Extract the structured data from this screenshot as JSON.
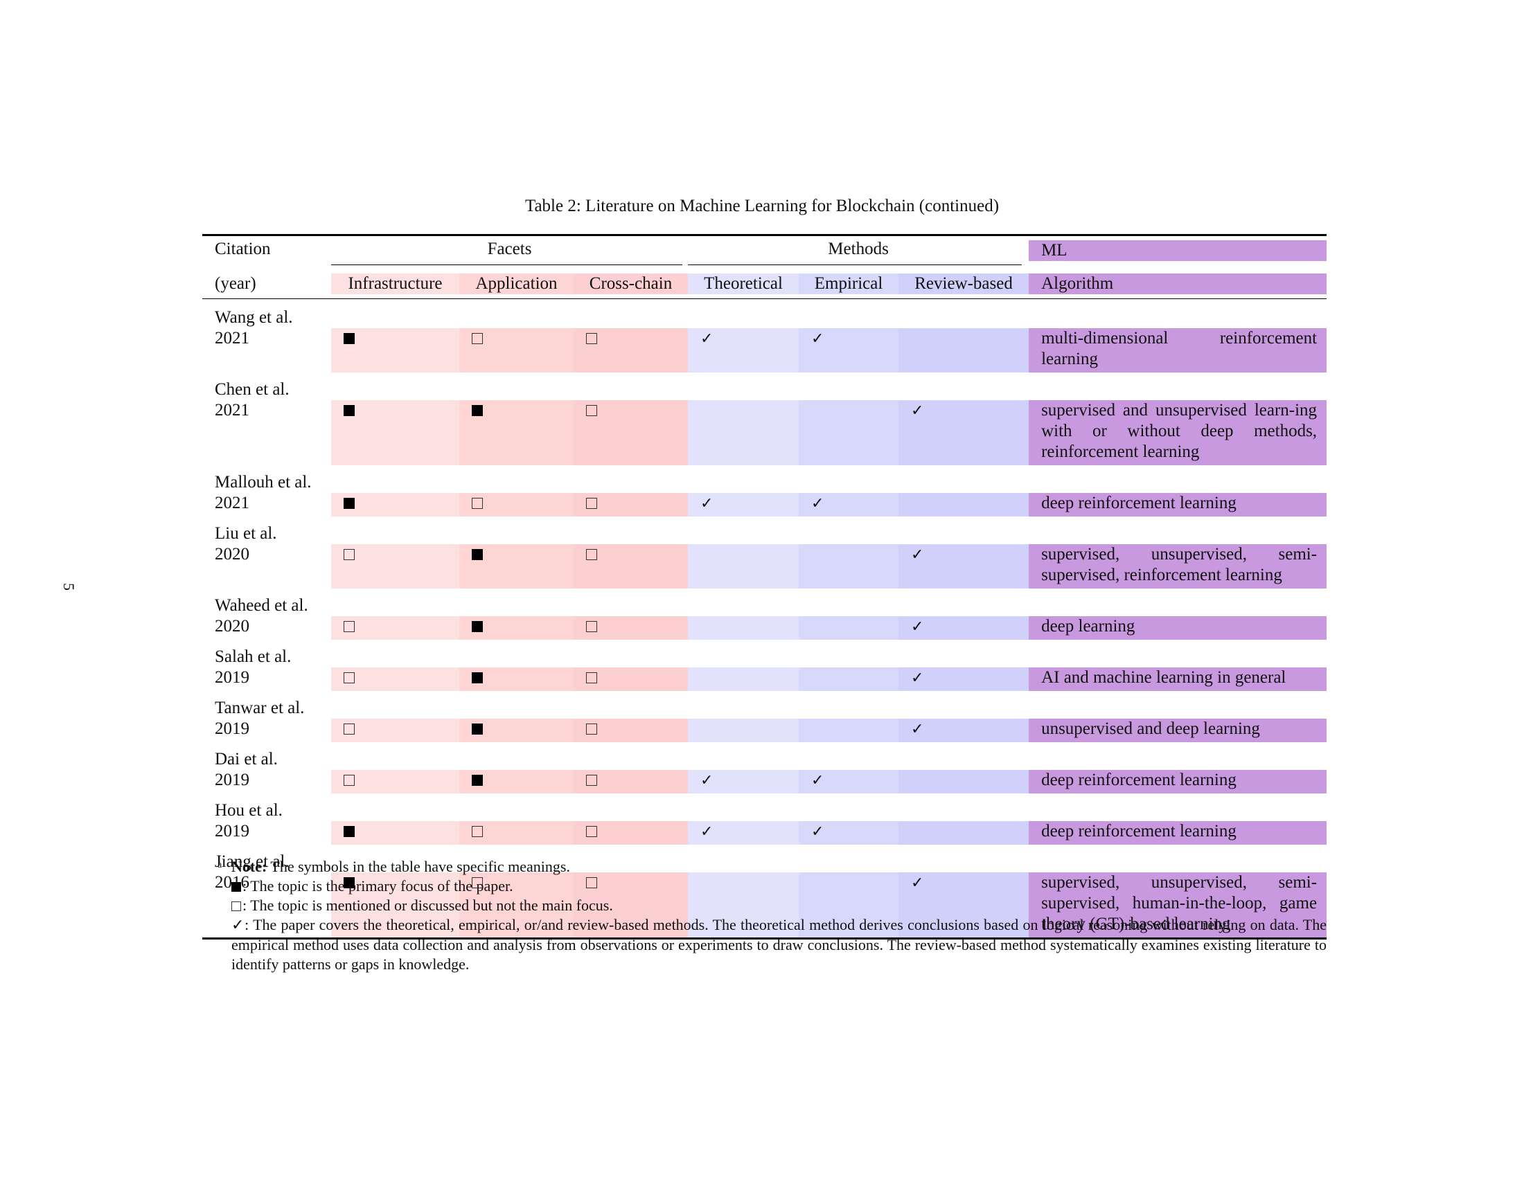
{
  "page_number": "5",
  "caption": "Table 2: Literature on Machine Learning for Blockchain (continued)",
  "header": {
    "citation": "Citation",
    "year": "(year)",
    "facets": "Facets",
    "methods": "Methods",
    "ml": "ML",
    "algorithm": "Algorithm",
    "infrastructure": "Infrastructure",
    "application": "Application",
    "cross_chain": "Cross-chain",
    "theoretical": "Theoretical",
    "empirical": "Empirical",
    "review_based": "Review-based"
  },
  "colors": {
    "facets_bg": "#fdd5d5",
    "methods_bg": "#d8d8fb",
    "ml_bg": "#c899de"
  },
  "rows": [
    {
      "name": "Wang et al.",
      "year": "2021",
      "infrastructure": "filled",
      "application": "empty",
      "cross_chain": "empty",
      "theoretical": "✓",
      "empirical": "✓",
      "review_based": "",
      "algorithm": "multi-dimensional reinforcement learning"
    },
    {
      "name": "Chen et al.",
      "year": "2021",
      "infrastructure": "filled",
      "application": "filled",
      "cross_chain": "empty",
      "theoretical": "",
      "empirical": "",
      "review_based": "✓",
      "algorithm": "supervised and unsupervised learn-ing with or without deep methods, reinforcement learning"
    },
    {
      "name": "Mallouh et al.",
      "year": "2021",
      "infrastructure": "filled",
      "application": "empty",
      "cross_chain": "empty",
      "theoretical": "✓",
      "empirical": "✓",
      "review_based": "",
      "algorithm": "deep reinforcement learning"
    },
    {
      "name": "Liu et al.",
      "year": "2020",
      "infrastructure": "empty",
      "application": "filled",
      "cross_chain": "empty",
      "theoretical": "",
      "empirical": "",
      "review_based": "✓",
      "algorithm": "supervised, unsupervised, semi-supervised, reinforcement learning"
    },
    {
      "name": "Waheed et al.",
      "year": "2020",
      "infrastructure": "empty",
      "application": "filled",
      "cross_chain": "empty",
      "theoretical": "",
      "empirical": "",
      "review_based": "✓",
      "algorithm": "deep learning"
    },
    {
      "name": "Salah et al.",
      "year": "2019",
      "infrastructure": "empty",
      "application": "filled",
      "cross_chain": "empty",
      "theoretical": "",
      "empirical": "",
      "review_based": "✓",
      "algorithm": "AI and machine learning in general"
    },
    {
      "name": "Tanwar et al.",
      "year": "2019",
      "infrastructure": "empty",
      "application": "filled",
      "cross_chain": "empty",
      "theoretical": "",
      "empirical": "",
      "review_based": "✓",
      "algorithm": "unsupervised and deep learning"
    },
    {
      "name": "Dai et al.",
      "year": "2019",
      "infrastructure": "empty",
      "application": "filled",
      "cross_chain": "empty",
      "theoretical": "✓",
      "empirical": "✓",
      "review_based": "",
      "algorithm": "deep reinforcement learning"
    },
    {
      "name": "Hou et al.",
      "year": "2019",
      "infrastructure": "filled",
      "application": "empty",
      "cross_chain": "empty",
      "theoretical": "✓",
      "empirical": "✓",
      "review_based": "",
      "algorithm": "deep reinforcement learning"
    },
    {
      "name": "Jiang et al.",
      "year": "2016",
      "infrastructure": "filled",
      "application": "empty",
      "cross_chain": "empty",
      "theoretical": "",
      "empirical": "",
      "review_based": "✓",
      "algorithm": "supervised, unsupervised, semi-supervised, human-in-the-loop, game theory (GT)-based learning"
    }
  ],
  "notes": {
    "marker": "a",
    "title": "Note:",
    "intro": "The symbols in the table have specific meanings.",
    "filled": ": The topic is the primary focus of the paper.",
    "empty": ": The topic is mentioned or discussed but not the main focus.",
    "check_symbol": "✓",
    "check": ": The paper covers the theoretical, empirical, or/and review-based methods. The theoretical method derives conclusions based on logical reasoning without relying on data. The empirical method uses data collection and analysis from observations or experiments to draw conclusions. The review-based method systematically examines existing literature to identify patterns or gaps in knowledge."
  }
}
